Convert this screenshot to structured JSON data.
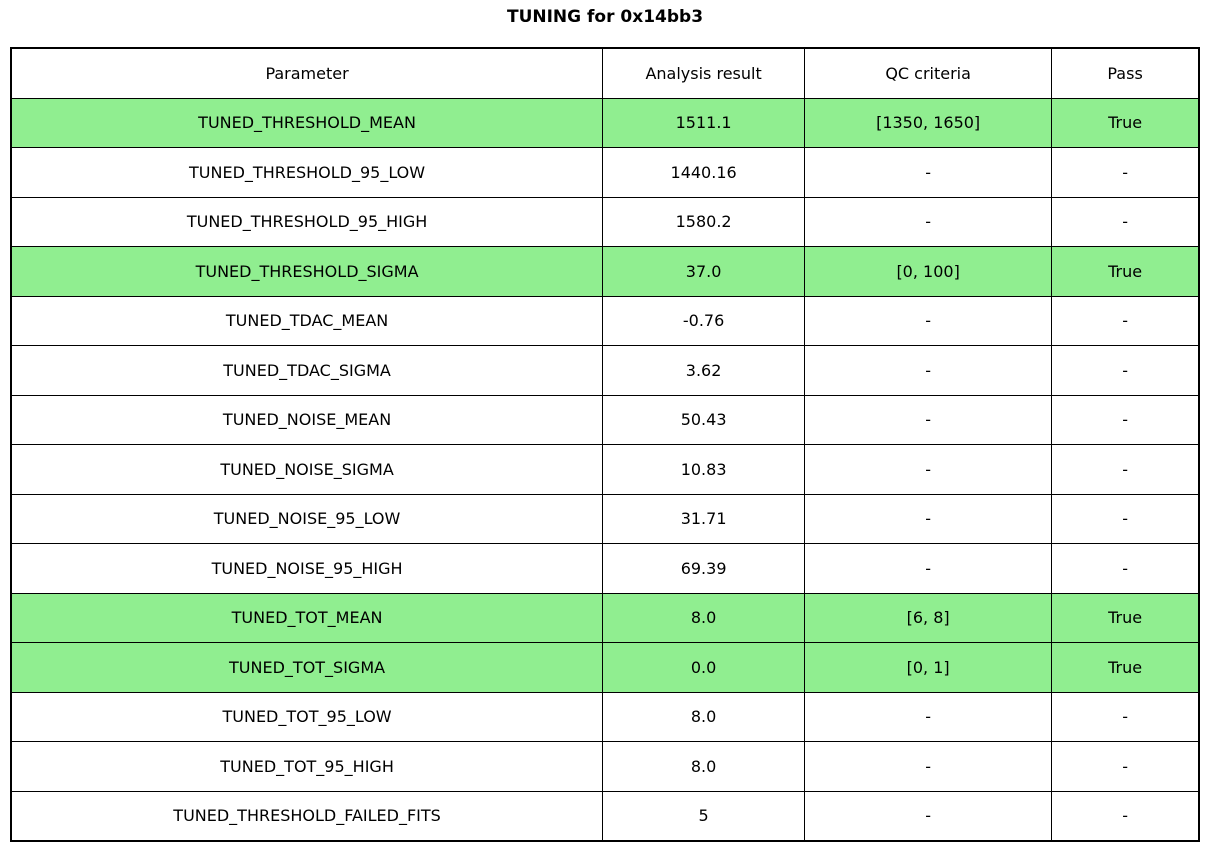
{
  "title": "TUNING for 0x14bb3",
  "colors": {
    "background": "#ffffff",
    "border": "#000000",
    "pass_row_bg": "#90EE90",
    "text": "#000000"
  },
  "chart_data": {
    "type": "table",
    "title": "TUNING for 0x14bb3",
    "columns": [
      "Parameter",
      "Analysis result",
      "QC criteria",
      "Pass"
    ],
    "rows": [
      [
        "TUNED_THRESHOLD_MEAN",
        "1511.1",
        "[1350, 1650]",
        "True"
      ],
      [
        "TUNED_THRESHOLD_95_LOW",
        "1440.16",
        "-",
        "-"
      ],
      [
        "TUNED_THRESHOLD_95_HIGH",
        "1580.2",
        "-",
        "-"
      ],
      [
        "TUNED_THRESHOLD_SIGMA",
        "37.0",
        "[0, 100]",
        "True"
      ],
      [
        "TUNED_TDAC_MEAN",
        "-0.76",
        "-",
        "-"
      ],
      [
        "TUNED_TDAC_SIGMA",
        "3.62",
        "-",
        "-"
      ],
      [
        "TUNED_NOISE_MEAN",
        "50.43",
        "-",
        "-"
      ],
      [
        "TUNED_NOISE_SIGMA",
        "10.83",
        "-",
        "-"
      ],
      [
        "TUNED_NOISE_95_LOW",
        "31.71",
        "-",
        "-"
      ],
      [
        "TUNED_NOISE_95_HIGH",
        "69.39",
        "-",
        "-"
      ],
      [
        "TUNED_TOT_MEAN",
        "8.0",
        "[6, 8]",
        "True"
      ],
      [
        "TUNED_TOT_SIGMA",
        "0.0",
        "[0, 1]",
        "True"
      ],
      [
        "TUNED_TOT_95_LOW",
        "8.0",
        "-",
        "-"
      ],
      [
        "TUNED_TOT_95_HIGH",
        "8.0",
        "-",
        "-"
      ],
      [
        "TUNED_THRESHOLD_FAILED_FITS",
        "5",
        "-",
        "-"
      ]
    ],
    "highlighted_rows": [
      0,
      3,
      10,
      11
    ],
    "highlight_color": "#90EE90",
    "layout": {
      "column_width_percents": [
        49.8,
        17.0,
        20.8,
        12.4
      ],
      "grid": true,
      "legend": "none"
    }
  }
}
